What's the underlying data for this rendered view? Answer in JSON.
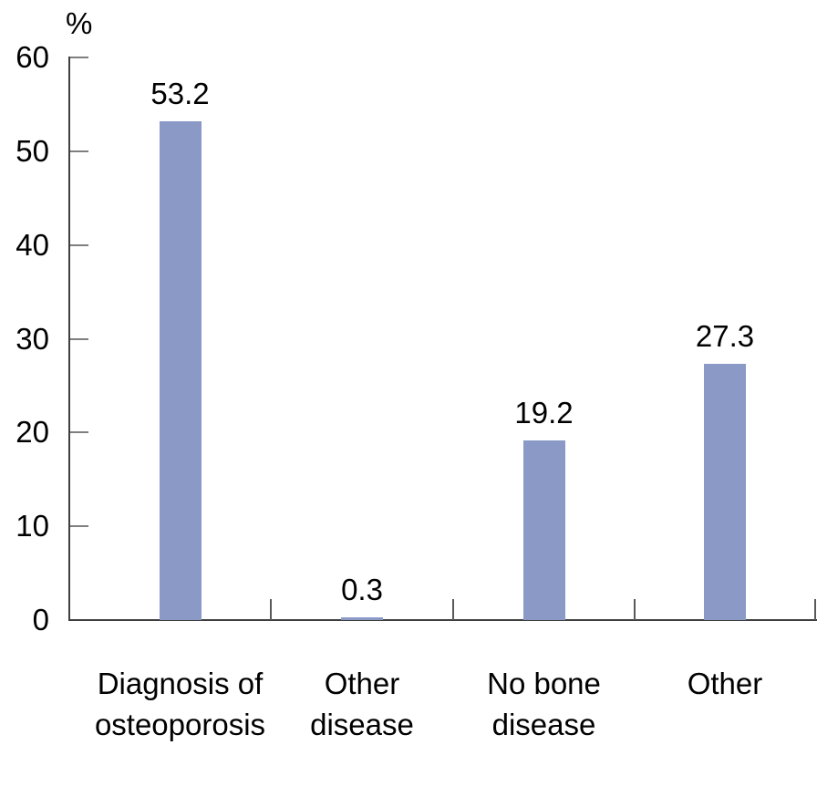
{
  "chart_data": {
    "type": "bar",
    "title": "",
    "xlabel": "",
    "ylabel": "%",
    "categories": [
      "Diagnosis of osteoporosis",
      "Other disease",
      "No bone disease",
      "Other"
    ],
    "category_lines": [
      [
        "Diagnosis of",
        "osteoporosis"
      ],
      [
        "Other",
        "disease"
      ],
      [
        "No bone",
        "disease"
      ],
      [
        "Other"
      ]
    ],
    "values": [
      53.2,
      0.3,
      19.2,
      27.3
    ],
    "value_labels": [
      "53.2",
      "0.3",
      "19.2",
      "27.3"
    ],
    "yticks": [
      0,
      10,
      20,
      30,
      40,
      50,
      60
    ],
    "ylim": [
      0,
      60
    ],
    "grid": false,
    "legend": null,
    "bar_color": "#8A99C6",
    "axis_color": "#3F3F3F",
    "ytick_color": "#7F7F7F",
    "xtick_color": "#595959",
    "text_color": "#000000"
  }
}
